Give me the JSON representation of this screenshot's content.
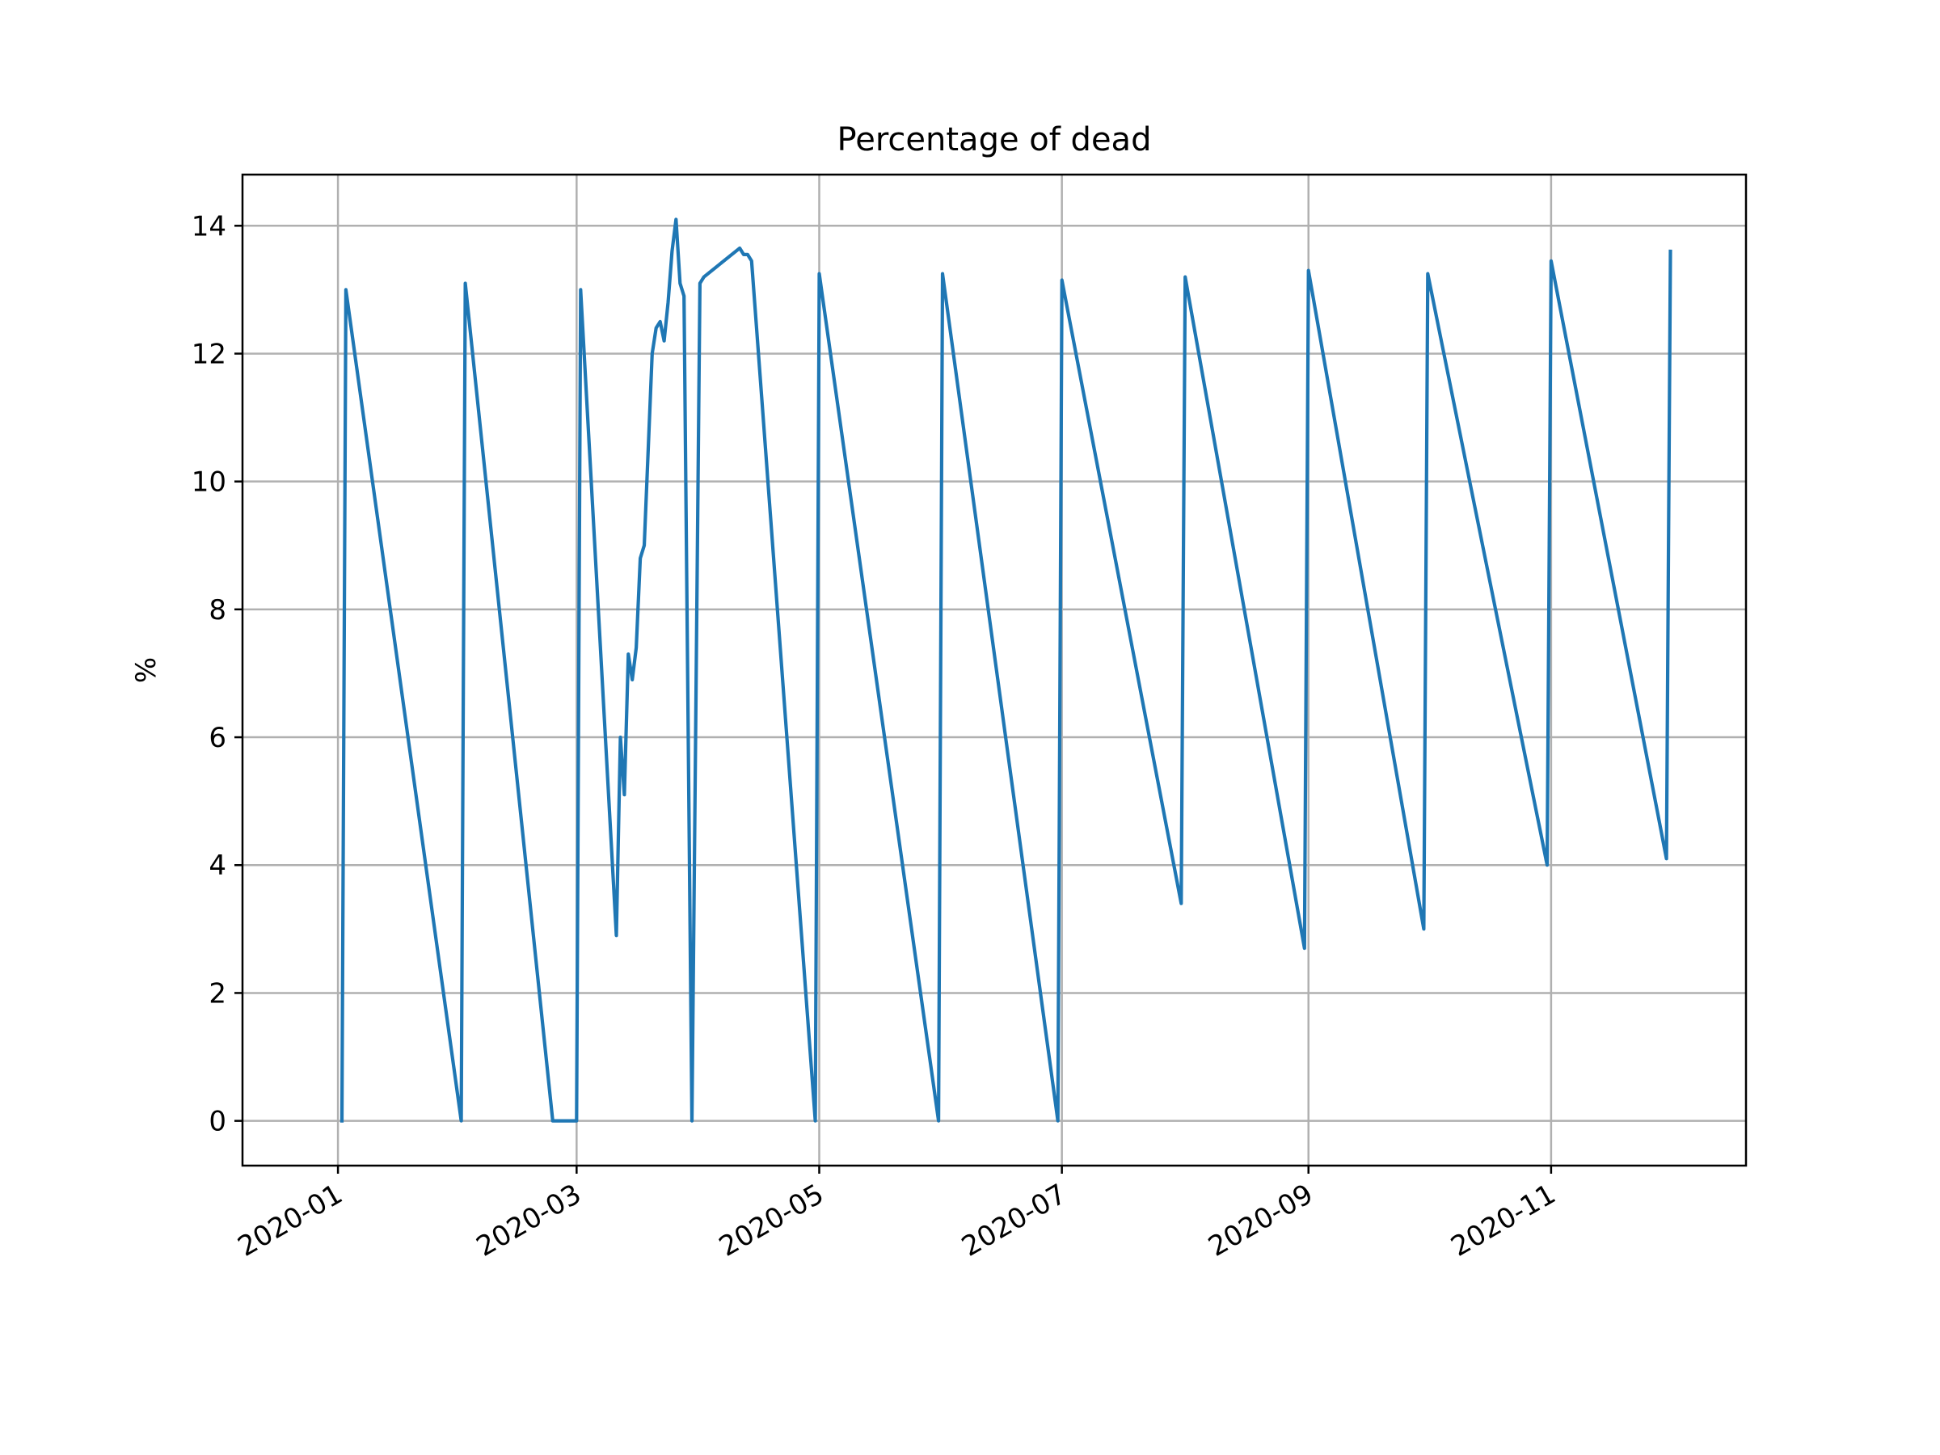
{
  "chart_data": {
    "type": "line",
    "title": "Percentage of dead",
    "xlabel": "",
    "ylabel": "%",
    "grid": true,
    "xlim": [
      "2019-12-08",
      "2020-12-20"
    ],
    "ylim": [
      -0.7,
      14.8
    ],
    "y_ticks": [
      0,
      2,
      4,
      6,
      8,
      10,
      12,
      14
    ],
    "x_ticks": [
      "2020-01-01",
      "2020-03-01",
      "2020-05-01",
      "2020-07-01",
      "2020-09-01",
      "2020-11-01"
    ],
    "x_tick_labels": [
      "2020-01",
      "2020-03",
      "2020-05",
      "2020-07",
      "2020-09",
      "2020-11"
    ],
    "line_color": "#1f77b4",
    "grid_color": "#b0b0b0",
    "series": [
      {
        "name": "Percentage of dead",
        "x": [
          "2020-01-02",
          "2020-01-03",
          "2020-02-01",
          "2020-02-02",
          "2020-02-24",
          "2020-03-01",
          "2020-03-02",
          "2020-03-11",
          "2020-03-12",
          "2020-03-13",
          "2020-03-14",
          "2020-03-15",
          "2020-03-16",
          "2020-03-17",
          "2020-03-18",
          "2020-03-20",
          "2020-03-21",
          "2020-03-22",
          "2020-03-23",
          "2020-03-24",
          "2020-03-25",
          "2020-03-26",
          "2020-03-27",
          "2020-03-28",
          "2020-03-30",
          "2020-04-01",
          "2020-04-02",
          "2020-04-11",
          "2020-04-12",
          "2020-04-13",
          "2020-04-14",
          "2020-04-30",
          "2020-05-01",
          "2020-05-31",
          "2020-06-01",
          "2020-06-30",
          "2020-07-01",
          "2020-07-31",
          "2020-08-01",
          "2020-08-31",
          "2020-09-01",
          "2020-09-30",
          "2020-10-01",
          "2020-10-31",
          "2020-11-01",
          "2020-11-30",
          "2020-12-01"
        ],
        "values": [
          0,
          13.0,
          0,
          13.1,
          0,
          0,
          13.0,
          2.9,
          6.0,
          5.1,
          7.3,
          6.9,
          7.4,
          8.8,
          9.0,
          12.0,
          12.4,
          12.5,
          12.2,
          12.8,
          13.6,
          14.1,
          13.1,
          12.9,
          0,
          13.1,
          13.2,
          13.65,
          13.55,
          13.55,
          13.45,
          0,
          13.25,
          0,
          13.25,
          0,
          13.15,
          3.4,
          13.2,
          2.7,
          13.3,
          3.0,
          13.25,
          4.0,
          13.45,
          4.1,
          13.6
        ]
      }
    ]
  }
}
